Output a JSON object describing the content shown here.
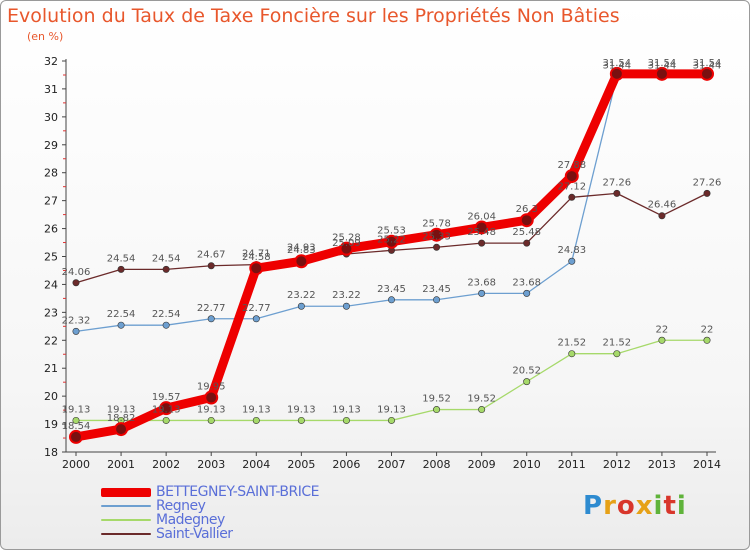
{
  "title": "Evolution du Taux de Taxe Foncière sur les Propriétés Non Bâties",
  "subtitle": "(en %)",
  "logo": "Proxiti",
  "chart_data": {
    "type": "line",
    "title": "Evolution du Taux de Taxe Foncière sur les Propriétés Non Bâties",
    "ylabel": "(en %)",
    "xlabel": "",
    "ylim": [
      18,
      32
    ],
    "grid": false,
    "legend": "bottom-left",
    "x": [
      2000,
      2001,
      2002,
      2003,
      2004,
      2005,
      2006,
      2007,
      2008,
      2009,
      2010,
      2011,
      2012,
      2013,
      2014
    ],
    "y_ticks": [
      18,
      19,
      20,
      21,
      22,
      23,
      24,
      25,
      26,
      27,
      28,
      29,
      30,
      31,
      32
    ],
    "series": [
      {
        "name": "BETTEGNEY-SAINT-BRICE",
        "color": "#ee0000",
        "values": [
          18.54,
          18.82,
          19.57,
          19.95,
          24.58,
          24.83,
          25.28,
          25.53,
          25.78,
          26.04,
          26.3,
          27.88,
          31.54,
          31.54,
          31.54
        ]
      },
      {
        "name": "Regney",
        "color": "#6d9fd0",
        "values": [
          22.32,
          22.54,
          22.54,
          22.77,
          22.77,
          23.22,
          23.22,
          23.45,
          23.45,
          23.68,
          23.68,
          24.83,
          31.44,
          31.44,
          31.44
        ]
      },
      {
        "name": "Madegney",
        "color": "#a6d96a",
        "values": [
          19.13,
          19.13,
          19.13,
          19.13,
          19.13,
          19.13,
          19.13,
          19.13,
          19.52,
          19.52,
          20.52,
          21.52,
          21.52,
          22,
          22
        ]
      },
      {
        "name": "Saint-Vallier",
        "color": "#6b2a2a",
        "values": [
          24.06,
          24.54,
          24.54,
          24.67,
          24.71,
          24.93,
          25.09,
          25.22,
          25.33,
          25.48,
          25.48,
          27.12,
          27.26,
          26.46,
          27.26
        ]
      }
    ]
  }
}
